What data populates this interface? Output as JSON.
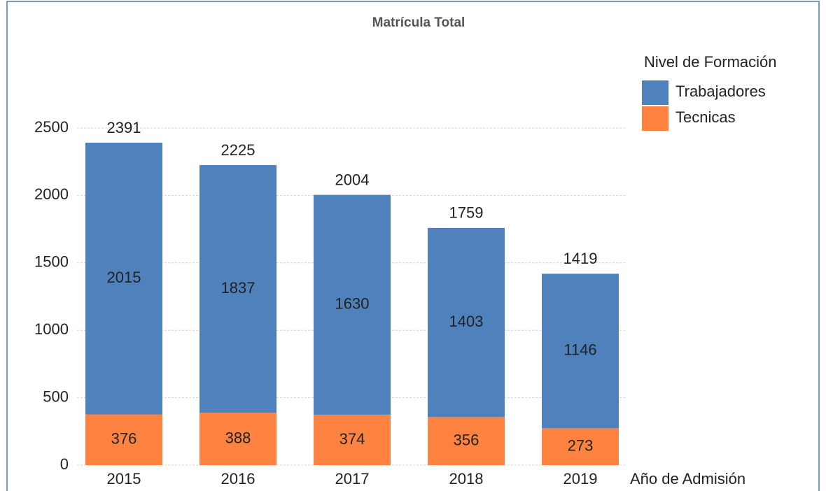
{
  "chart_data": {
    "type": "stacked_bar",
    "title": "Matrícula Total",
    "x_label": "Año de Admisión",
    "legend_title": "Nivel de Formación",
    "legend": "top-right",
    "categories": [
      "2015",
      "2016",
      "2017",
      "2018",
      "2019"
    ],
    "series": [
      {
        "name": "Trabajadores",
        "color": "#4f81bd",
        "values": [
          2015,
          1837,
          1630,
          1403,
          1146
        ]
      },
      {
        "name": "Tecnicas",
        "color": "#fe8240",
        "values": [
          376,
          388,
          374,
          356,
          273
        ]
      }
    ],
    "totals": [
      2391,
      2225,
      2004,
      1759,
      1419
    ],
    "ylim": [
      0,
      2500
    ],
    "yticks": [
      0,
      500,
      1000,
      1500,
      2000,
      2500
    ],
    "grid": true
  }
}
